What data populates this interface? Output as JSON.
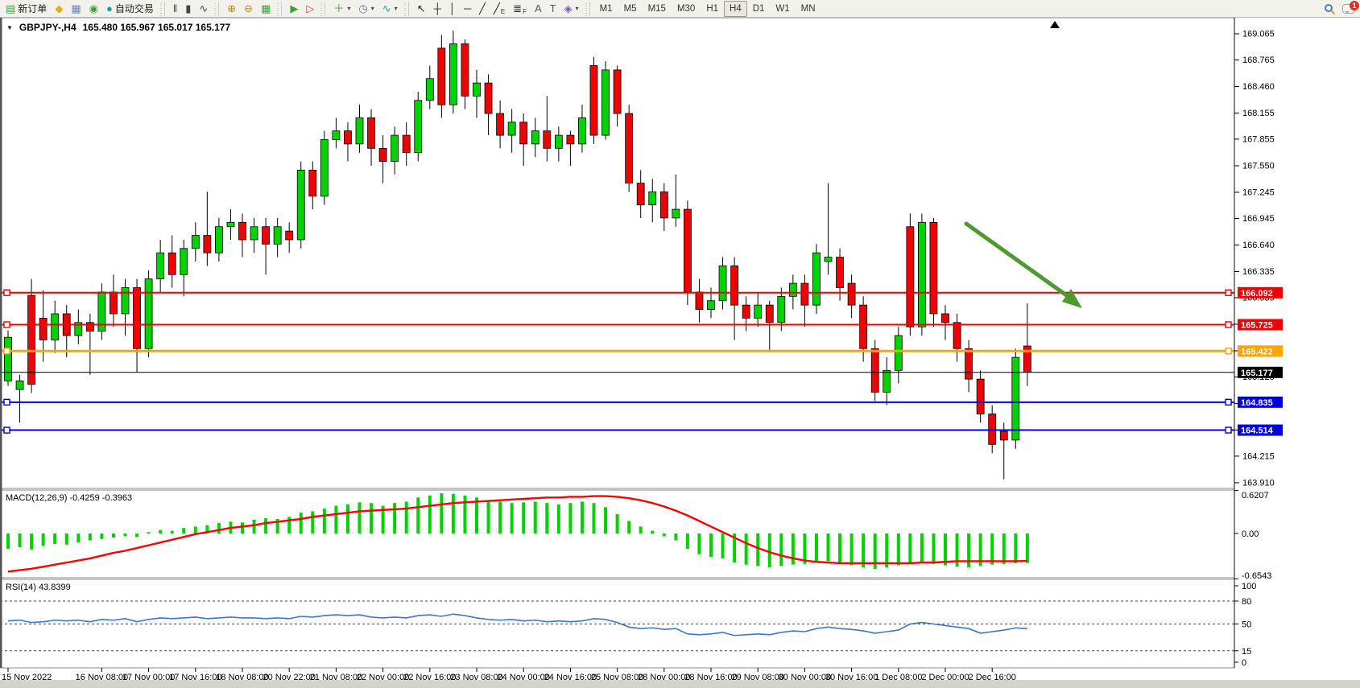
{
  "toolbar": {
    "groups": [
      [
        {
          "name": "new-order-button",
          "glyph": "▤",
          "color": "#3f9e3f",
          "label": "新订单"
        },
        {
          "name": "sound-button",
          "glyph": "◆",
          "color": "#dfb008"
        },
        {
          "name": "terminal-button",
          "glyph": "▦",
          "color": "#6688c0"
        },
        {
          "name": "news-button",
          "glyph": "◉",
          "color": "#3aa13a"
        },
        {
          "name": "autotrading-button",
          "glyph": "●",
          "color": "#16a0a6",
          "label": "自动交易"
        }
      ],
      [
        {
          "name": "bar-chart-button",
          "glyph": "‖",
          "color": "#444"
        },
        {
          "name": "candlestick-button",
          "glyph": "▮",
          "color": "#444"
        },
        {
          "name": "line-chart-button",
          "glyph": "∿",
          "color": "#444"
        }
      ],
      [
        {
          "name": "zoom-in-button",
          "glyph": "⊕",
          "color": "#b8860b"
        },
        {
          "name": "zoom-out-button",
          "glyph": "⊖",
          "color": "#b8860b"
        },
        {
          "name": "tile-windows-button",
          "glyph": "▦",
          "color": "#3f9e3f"
        }
      ],
      [
        {
          "name": "auto-scroll-button",
          "glyph": "▶",
          "color": "#3aa13a"
        },
        {
          "name": "chart-shift-button",
          "glyph": "▷",
          "color": "#c04040"
        }
      ],
      [
        {
          "name": "new-chart-button",
          "glyph": "＋",
          "color": "#3f9e3f",
          "dropdown": true
        },
        {
          "name": "profiles-button",
          "glyph": "◷",
          "color": "#4a78c0",
          "dropdown": true
        },
        {
          "name": "indicators-button",
          "glyph": "∿",
          "color": "#16a0a6",
          "dropdown": true
        }
      ],
      [
        {
          "name": "cursor-button",
          "glyph": "↖",
          "color": "#222"
        },
        {
          "name": "crosshair-button",
          "glyph": "┼",
          "color": "#222"
        },
        {
          "name": "vertical-line-button",
          "glyph": "│",
          "color": "#222"
        },
        {
          "name": "horizontal-line-button",
          "glyph": "─",
          "color": "#222"
        },
        {
          "name": "trendline-button",
          "glyph": "╱",
          "color": "#222"
        },
        {
          "name": "channel-button",
          "glyph": "╱",
          "color": "#222",
          "sub": "E"
        },
        {
          "name": "fibonacci-button",
          "glyph": "≣",
          "color": "#222",
          "sub": "F"
        },
        {
          "name": "text-button",
          "glyph": "A",
          "color": "#555"
        },
        {
          "name": "label-button",
          "glyph": "T",
          "color": "#555"
        },
        {
          "name": "shapes-button",
          "glyph": "◈",
          "color": "#7a5ab0",
          "dropdown": true
        }
      ]
    ],
    "timeframes": [
      "M1",
      "M5",
      "M15",
      "M30",
      "H1",
      "H4",
      "D1",
      "W1",
      "MN"
    ],
    "active_timeframe": "H4",
    "notification_count": "1"
  },
  "chart": {
    "symbol": "GBPJPY-,H4",
    "ohlc": "165.480 165.967 165.017 165.177"
  },
  "indicators": {
    "macd_label": "MACD(12,26,9) -0.4259 -0.3963",
    "rsi_label": "RSI(14) 43.8399"
  },
  "price_axis_ticks": [
    "169.065",
    "168.765",
    "168.460",
    "168.155",
    "167.855",
    "167.550",
    "167.245",
    "166.945",
    "166.640",
    "166.335",
    "166.035",
    "165.730",
    "165.425",
    "165.125",
    "164.820",
    "164.515",
    "164.215",
    "163.910"
  ],
  "macd_axis": [
    {
      "text": "0.6207",
      "value": 0.6207
    },
    {
      "text": "0.00",
      "value": 0.0
    },
    {
      "text": "-0.6543",
      "value": -0.6543
    }
  ],
  "rsi_axis": [
    {
      "text": "100",
      "value": 100
    },
    {
      "text": "80",
      "value": 80
    },
    {
      "text": "50",
      "value": 50
    },
    {
      "text": "15",
      "value": 15
    },
    {
      "text": "0",
      "value": 0
    }
  ],
  "rsi_levels": [
    80,
    50,
    15
  ],
  "chart_data": {
    "type": "candlestick",
    "symbol": "GBPJPY",
    "timeframe": "H4",
    "ylim": [
      163.85,
      169.23
    ],
    "time_labels": [
      "15 Nov 2022",
      "16 Nov 08:00",
      "17 Nov 00:00",
      "17 Nov 16:00",
      "18 Nov 08:00",
      "20 Nov 22:00",
      "21 Nov 08:00",
      "22 Nov 00:00",
      "22 Nov 16:00",
      "23 Nov 08:00",
      "24 Nov 00:00",
      "24 Nov 16:00",
      "25 Nov 08:00",
      "28 Nov 00:00",
      "28 Nov 16:00",
      "29 Nov 08:00",
      "30 Nov 00:00",
      "30 Nov 16:00",
      "1 Dec 08:00",
      "2 Dec 00:00",
      "2 Dec 16:00"
    ],
    "hlines": [
      {
        "price": 166.092,
        "color": "#f00000",
        "width": 2,
        "label": "166.092",
        "handles": true
      },
      {
        "price": 165.725,
        "color": "#f00000",
        "width": 2,
        "label": "165.725",
        "handles": true
      },
      {
        "price": 165.422,
        "color": "#ffa400",
        "width": 3,
        "label": "165.422",
        "handles": true
      },
      {
        "price": 165.177,
        "color": "#000000",
        "width": 1,
        "label": "165.177",
        "handles": false
      },
      {
        "price": 164.835,
        "color": "#0000e0",
        "width": 2,
        "label": "164.835",
        "handles": true
      },
      {
        "price": 164.514,
        "color": "#0000e0",
        "width": 2,
        "label": "164.514",
        "handles": true
      }
    ],
    "candles": [
      [
        165.08,
        165.66,
        165.02,
        165.58
      ],
      [
        164.98,
        165.15,
        164.6,
        165.08
      ],
      [
        166.06,
        166.25,
        164.94,
        165.04
      ],
      [
        165.8,
        166.12,
        165.3,
        165.55
      ],
      [
        165.55,
        166.0,
        165.4,
        165.85
      ],
      [
        165.85,
        165.95,
        165.35,
        165.6
      ],
      [
        165.6,
        165.9,
        165.5,
        165.75
      ],
      [
        165.75,
        165.85,
        165.15,
        165.65
      ],
      [
        165.65,
        166.2,
        165.55,
        166.1
      ],
      [
        166.1,
        166.3,
        165.7,
        165.85
      ],
      [
        165.85,
        166.25,
        165.6,
        166.15
      ],
      [
        166.15,
        166.25,
        165.18,
        165.45
      ],
      [
        165.45,
        166.35,
        165.35,
        166.25
      ],
      [
        166.25,
        166.7,
        166.1,
        166.55
      ],
      [
        166.55,
        166.75,
        166.15,
        166.3
      ],
      [
        166.3,
        166.7,
        166.05,
        166.6
      ],
      [
        166.6,
        166.9,
        166.45,
        166.75
      ],
      [
        166.75,
        167.25,
        166.4,
        166.55
      ],
      [
        166.55,
        166.95,
        166.45,
        166.85
      ],
      [
        166.85,
        167.05,
        166.7,
        166.9
      ],
      [
        166.9,
        167.0,
        166.5,
        166.7
      ],
      [
        166.7,
        166.95,
        166.55,
        166.85
      ],
      [
        166.85,
        166.95,
        166.3,
        166.65
      ],
      [
        166.65,
        166.95,
        166.5,
        166.85
      ],
      [
        166.8,
        166.9,
        166.55,
        166.7
      ],
      [
        166.7,
        167.6,
        166.6,
        167.5
      ],
      [
        167.5,
        167.6,
        167.05,
        167.2
      ],
      [
        167.2,
        167.95,
        167.1,
        167.85
      ],
      [
        167.85,
        168.1,
        167.75,
        167.95
      ],
      [
        167.95,
        168.05,
        167.6,
        167.8
      ],
      [
        167.8,
        168.25,
        167.7,
        168.1
      ],
      [
        168.1,
        168.2,
        167.55,
        167.75
      ],
      [
        167.75,
        167.9,
        167.35,
        167.6
      ],
      [
        167.6,
        168.0,
        167.45,
        167.9
      ],
      [
        167.9,
        168.05,
        167.55,
        167.7
      ],
      [
        167.7,
        168.4,
        167.6,
        168.3
      ],
      [
        168.3,
        168.7,
        168.2,
        168.55
      ],
      [
        168.9,
        169.05,
        168.1,
        168.25
      ],
      [
        168.25,
        169.1,
        168.15,
        168.95
      ],
      [
        168.95,
        169.0,
        168.2,
        168.35
      ],
      [
        168.35,
        168.65,
        168.1,
        168.5
      ],
      [
        168.5,
        168.6,
        167.9,
        168.15
      ],
      [
        168.15,
        168.3,
        167.75,
        167.9
      ],
      [
        167.9,
        168.2,
        167.7,
        168.05
      ],
      [
        168.05,
        168.15,
        167.55,
        167.8
      ],
      [
        167.8,
        168.1,
        167.65,
        167.95
      ],
      [
        167.95,
        168.35,
        167.6,
        167.75
      ],
      [
        167.75,
        168.0,
        167.6,
        167.9
      ],
      [
        167.9,
        167.95,
        167.55,
        167.8
      ],
      [
        167.8,
        168.25,
        167.7,
        168.1
      ],
      [
        168.7,
        168.8,
        167.8,
        167.9
      ],
      [
        167.9,
        168.75,
        167.85,
        168.65
      ],
      [
        168.65,
        168.7,
        168.0,
        168.15
      ],
      [
        168.15,
        168.25,
        167.25,
        167.35
      ],
      [
        167.35,
        167.5,
        166.95,
        167.1
      ],
      [
        167.1,
        167.4,
        166.9,
        167.25
      ],
      [
        167.25,
        167.35,
        166.8,
        166.95
      ],
      [
        166.95,
        167.45,
        166.85,
        167.05
      ],
      [
        167.05,
        167.15,
        165.95,
        166.1
      ],
      [
        166.1,
        166.25,
        165.75,
        165.9
      ],
      [
        165.9,
        166.15,
        165.8,
        166.0
      ],
      [
        166.0,
        166.5,
        165.9,
        166.4
      ],
      [
        166.4,
        166.5,
        165.55,
        165.95
      ],
      [
        165.95,
        166.05,
        165.65,
        165.8
      ],
      [
        165.8,
        166.1,
        165.7,
        165.95
      ],
      [
        165.95,
        166.0,
        165.42,
        165.75
      ],
      [
        165.75,
        166.15,
        165.65,
        166.05
      ],
      [
        166.05,
        166.3,
        165.9,
        166.2
      ],
      [
        166.2,
        166.3,
        165.7,
        165.95
      ],
      [
        165.95,
        166.65,
        165.85,
        166.55
      ],
      [
        166.45,
        167.35,
        166.3,
        166.5
      ],
      [
        166.5,
        166.6,
        166.0,
        166.15
      ],
      [
        166.2,
        166.3,
        165.8,
        165.95
      ],
      [
        165.95,
        166.05,
        165.3,
        165.45
      ],
      [
        165.45,
        165.55,
        164.85,
        164.95
      ],
      [
        164.95,
        165.35,
        164.8,
        165.2
      ],
      [
        165.2,
        165.7,
        165.05,
        165.6
      ],
      [
        166.85,
        167.0,
        165.6,
        165.7
      ],
      [
        165.7,
        167.0,
        165.6,
        166.9
      ],
      [
        166.9,
        166.95,
        165.7,
        165.85
      ],
      [
        165.85,
        165.95,
        165.55,
        165.75
      ],
      [
        165.75,
        165.85,
        165.3,
        165.45
      ],
      [
        165.45,
        165.55,
        164.95,
        165.1
      ],
      [
        165.1,
        165.2,
        164.6,
        164.7
      ],
      [
        164.7,
        164.8,
        164.25,
        164.35
      ],
      [
        164.5,
        164.6,
        163.95,
        164.4
      ],
      [
        164.4,
        165.45,
        164.3,
        165.35
      ],
      [
        165.48,
        165.97,
        165.02,
        165.18
      ]
    ],
    "macd": {
      "histogram": [
        -0.22,
        -0.2,
        -0.23,
        -0.18,
        -0.15,
        -0.16,
        -0.13,
        -0.1,
        -0.08,
        -0.06,
        -0.04,
        -0.05,
        0.02,
        0.05,
        0.04,
        0.08,
        0.1,
        0.12,
        0.15,
        0.17,
        0.16,
        0.2,
        0.22,
        0.21,
        0.24,
        0.3,
        0.32,
        0.36,
        0.4,
        0.42,
        0.45,
        0.44,
        0.4,
        0.44,
        0.46,
        0.52,
        0.55,
        0.58,
        0.57,
        0.55,
        0.52,
        0.48,
        0.46,
        0.44,
        0.45,
        0.46,
        0.44,
        0.42,
        0.44,
        0.46,
        0.44,
        0.38,
        0.28,
        0.18,
        0.1,
        0.04,
        -0.04,
        -0.1,
        -0.22,
        -0.3,
        -0.34,
        -0.36,
        -0.42,
        -0.45,
        -0.47,
        -0.49,
        -0.47,
        -0.45,
        -0.44,
        -0.42,
        -0.4,
        -0.44,
        -0.46,
        -0.49,
        -0.51,
        -0.49,
        -0.46,
        -0.44,
        -0.42,
        -0.44,
        -0.46,
        -0.48,
        -0.49,
        -0.47,
        -0.45,
        -0.44,
        -0.43,
        -0.4259
      ],
      "signal": [
        -0.55,
        -0.53,
        -0.51,
        -0.48,
        -0.45,
        -0.42,
        -0.39,
        -0.36,
        -0.32,
        -0.28,
        -0.25,
        -0.21,
        -0.17,
        -0.13,
        -0.09,
        -0.05,
        -0.01,
        0.02,
        0.05,
        0.08,
        0.1,
        0.12,
        0.15,
        0.17,
        0.19,
        0.21,
        0.24,
        0.26,
        0.28,
        0.3,
        0.32,
        0.33,
        0.34,
        0.35,
        0.36,
        0.38,
        0.4,
        0.42,
        0.44,
        0.45,
        0.46,
        0.47,
        0.48,
        0.49,
        0.5,
        0.51,
        0.52,
        0.52,
        0.53,
        0.53,
        0.54,
        0.54,
        0.53,
        0.51,
        0.48,
        0.44,
        0.39,
        0.33,
        0.26,
        0.18,
        0.1,
        0.02,
        -0.06,
        -0.14,
        -0.21,
        -0.27,
        -0.32,
        -0.36,
        -0.39,
        -0.41,
        -0.42,
        -0.43,
        -0.43,
        -0.43,
        -0.43,
        -0.43,
        -0.43,
        -0.43,
        -0.42,
        -0.42,
        -0.41,
        -0.4,
        -0.4,
        -0.4,
        -0.4,
        -0.4,
        -0.4,
        -0.3963
      ]
    },
    "rsi": [
      54,
      55,
      52,
      53,
      55,
      54,
      55,
      53,
      56,
      55,
      57,
      53,
      56,
      58,
      57,
      58,
      59,
      57,
      58,
      59,
      58,
      58,
      57,
      58,
      57,
      60,
      59,
      61,
      62,
      61,
      62,
      59,
      58,
      59,
      58,
      61,
      62,
      60,
      63,
      61,
      58,
      56,
      55,
      56,
      54,
      55,
      53,
      54,
      53,
      54,
      57,
      56,
      52,
      46,
      44,
      45,
      43,
      44,
      37,
      36,
      37,
      39,
      35,
      36,
      37,
      36,
      39,
      41,
      40,
      44,
      46,
      44,
      43,
      41,
      38,
      40,
      42,
      50,
      52,
      50,
      48,
      46,
      44,
      38,
      40,
      42,
      45,
      43.84
    ]
  },
  "annotation_arrow": {
    "color": "#4e9a2e"
  },
  "colors": {
    "candle_up": "#00d400",
    "candle_down": "#ee0404",
    "macd_hist": "#00d400",
    "macd_signal": "#fe0000",
    "rsi_line": "#3d78c8",
    "axis_text": "#000000"
  }
}
